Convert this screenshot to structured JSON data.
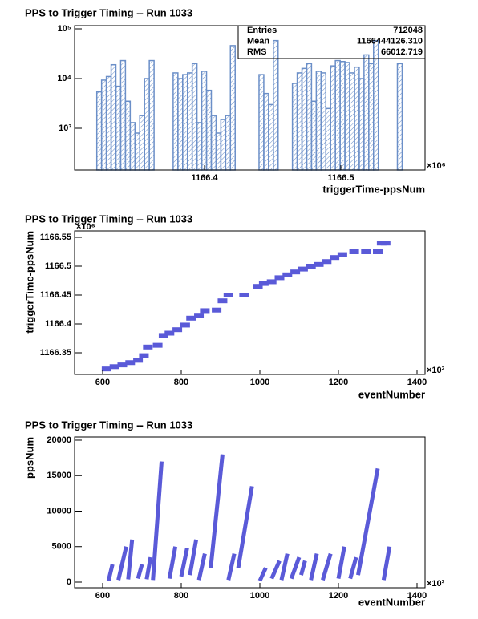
{
  "chart_data": [
    {
      "type": "hist",
      "title": "PPS to Trigger Timing -- Run 1033",
      "x_label": "triggerTime-ppsNum",
      "x_multiplier": "×10⁶",
      "color": "#6b8fc8",
      "log_y": true,
      "xlim": [
        1166.3047,
        1166.5618
      ],
      "xticks": [
        1166.4,
        1166.5
      ],
      "ylim": [
        145,
        116000
      ],
      "yticks": [
        {
          "value": 1000,
          "label": "10³"
        },
        {
          "value": 10000,
          "label": "10⁴"
        },
        {
          "value": 100000,
          "label": "10⁵"
        }
      ],
      "bins": [
        1166.321,
        1166.3245,
        1166.328,
        1166.3315,
        1166.335,
        1166.3385,
        1166.342,
        1166.3455,
        1166.349,
        1166.3525,
        1166.356,
        1166.3595,
        1166.363,
        1166.3665,
        1166.37,
        1166.3735,
        1166.377,
        1166.3805,
        1166.384,
        1166.3875,
        1166.391,
        1166.3945,
        1166.398,
        1166.4015,
        1166.405,
        1166.4085,
        1166.412,
        1166.4155,
        1166.419,
        1166.4225,
        1166.426,
        1166.4295,
        1166.433,
        1166.4365,
        1166.44,
        1166.4435,
        1166.447,
        1166.4505,
        1166.454,
        1166.4575,
        1166.461,
        1166.4645,
        1166.468,
        1166.4715,
        1166.475,
        1166.4785,
        1166.482,
        1166.4855,
        1166.489,
        1166.4925,
        1166.496,
        1166.4995,
        1166.503,
        1166.5065,
        1166.51,
        1166.5135,
        1166.517,
        1166.5205,
        1166.524,
        1166.5275,
        1166.531,
        1166.5345,
        1166.538,
        1166.5415,
        1166.545
      ],
      "counts": [
        5400,
        9300,
        11000,
        19000,
        7000,
        23000,
        3500,
        1300,
        800,
        1800,
        10000,
        23000,
        0,
        0,
        0,
        0,
        13000,
        10000,
        12000,
        13000,
        20000,
        1300,
        14000,
        5800,
        1800,
        800,
        1500,
        1800,
        46000,
        0,
        0,
        0,
        0,
        0,
        12000,
        5000,
        3000,
        58000,
        0,
        0,
        0,
        8000,
        13000,
        16000,
        20000,
        3500,
        14000,
        13000,
        2500,
        18000,
        23000,
        22000,
        21000,
        13000,
        17000,
        10000,
        30000,
        20000,
        58000,
        0,
        0,
        0,
        0,
        20000
      ],
      "stats": [
        {
          "label": "Entries",
          "value": "712048"
        },
        {
          "label": "Mean",
          "value": "1166444126.310"
        },
        {
          "label": "RMS",
          "value": "66012.719"
        }
      ]
    },
    {
      "type": "scatter",
      "title": "PPS to Trigger Timing -- Run 1033",
      "x_label": "eventNumber",
      "y_label": "triggerTime-ppsNum",
      "x_multiplier": "×10³",
      "y_multiplier": "×10⁶",
      "color": "#5a5ad8",
      "log_y": false,
      "xlim": [
        528.6,
        1420.4
      ],
      "xticks": [
        600,
        800,
        1000,
        1200,
        1400
      ],
      "ylim": [
        1166.3125,
        1166.5611
      ],
      "yticks": [
        1166.35,
        1166.4,
        1166.45,
        1166.5,
        1166.55
      ],
      "x": [
        610,
        630,
        650,
        670,
        690,
        705,
        715,
        740,
        755,
        770,
        790,
        810,
        825,
        845,
        860,
        890,
        905,
        920,
        960,
        995,
        1010,
        1030,
        1050,
        1070,
        1090,
        1110,
        1130,
        1150,
        1170,
        1190,
        1210,
        1240,
        1270,
        1300,
        1310,
        1320
      ],
      "values": [
        1166.322,
        1166.326,
        1166.329,
        1166.333,
        1166.337,
        1166.345,
        1166.36,
        1166.363,
        1166.38,
        1166.384,
        1166.39,
        1166.398,
        1166.41,
        1166.415,
        1166.423,
        1166.424,
        1166.44,
        1166.45,
        1166.45,
        1166.465,
        1166.47,
        1166.473,
        1166.48,
        1166.485,
        1166.49,
        1166.495,
        1166.5,
        1166.503,
        1166.508,
        1166.515,
        1166.52,
        1166.525,
        1166.525,
        1166.525,
        1166.54,
        1166.54
      ]
    },
    {
      "type": "line",
      "title": "PPS to Trigger Timing -- Run 1033",
      "x_label": "eventNumber",
      "y_label": "ppsNum",
      "x_multiplier": "×10³",
      "color": "#5a5ad8",
      "log_y": false,
      "xlim": [
        528.6,
        1420.4
      ],
      "xticks": [
        600,
        800,
        1000,
        1200,
        1400
      ],
      "ylim": [
        -790,
        20450
      ],
      "yticks": [
        0,
        5000,
        10000,
        15000,
        20000
      ],
      "x": [
        615,
        625,
        null,
        640,
        660,
        null,
        665,
        675,
        null,
        690,
        700,
        null,
        712,
        722,
        null,
        728,
        750,
        null,
        770,
        785,
        null,
        800,
        815,
        null,
        822,
        838,
        null,
        845,
        860,
        null,
        875,
        905,
        null,
        920,
        935,
        null,
        945,
        980,
        null,
        1000,
        1015,
        null,
        1030,
        1050,
        null,
        1055,
        1070,
        null,
        1080,
        1100,
        null,
        1105,
        1115,
        null,
        1130,
        1145,
        null,
        1160,
        1180,
        null,
        1200,
        1215,
        null,
        1230,
        1245,
        null,
        1250,
        1300,
        null,
        1315,
        1330
      ],
      "values": [
        200,
        2500,
        null,
        300,
        5000,
        null,
        400,
        6000,
        null,
        500,
        2500,
        null,
        400,
        3500,
        null,
        300,
        17000,
        null,
        500,
        5000,
        null,
        800,
        4800,
        null,
        1000,
        6000,
        null,
        300,
        4000,
        null,
        2000,
        18000,
        null,
        300,
        4000,
        null,
        2000,
        13500,
        null,
        200,
        2000,
        null,
        500,
        3000,
        null,
        300,
        4000,
        null,
        500,
        3500,
        null,
        1000,
        3000,
        null,
        300,
        4000,
        null,
        300,
        4000,
        null,
        500,
        5000,
        null,
        500,
        3500,
        null,
        1000,
        16000,
        null,
        300,
        5000
      ]
    }
  ]
}
